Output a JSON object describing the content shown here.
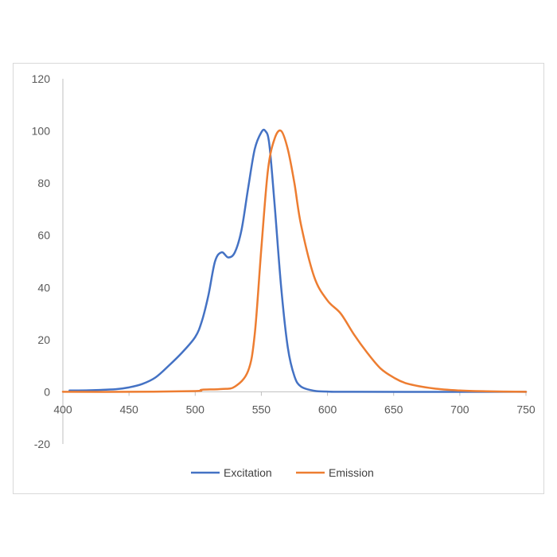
{
  "chart_data": {
    "type": "line",
    "title": "",
    "xlabel": "",
    "ylabel": "",
    "xlim": [
      400,
      750
    ],
    "ylim": [
      -20,
      120
    ],
    "x_ticks": [
      400,
      450,
      500,
      550,
      600,
      650,
      700,
      750
    ],
    "y_ticks": [
      -20,
      0,
      20,
      40,
      60,
      80,
      100,
      120
    ],
    "x_tick_labels": [
      "400",
      "450",
      "500",
      "550",
      "600",
      "650",
      "700",
      "750"
    ],
    "y_tick_labels": [
      "-20",
      "0",
      "20",
      "40",
      "60",
      "80",
      "100",
      "120"
    ],
    "grid": false,
    "legend_position": "bottom",
    "series": [
      {
        "name": "Excitation",
        "color": "#4472C4",
        "x": [
          405,
          420,
          440,
          450,
          460,
          470,
          480,
          490,
          500,
          505,
          510,
          515,
          520,
          525,
          530,
          535,
          540,
          545,
          550,
          553,
          556,
          560,
          565,
          570,
          575,
          580,
          590,
          600,
          620,
          750
        ],
        "y": [
          0.5,
          0.6,
          1,
          1.7,
          3,
          5.5,
          10,
          15,
          21,
          27,
          37,
          50,
          53.5,
          51.5,
          53.5,
          62,
          78,
          93,
          99.5,
          100,
          95,
          72,
          40,
          17,
          6,
          2,
          0.4,
          0.1,
          0,
          0
        ]
      },
      {
        "name": "Emission",
        "color": "#ED7D31",
        "x": [
          400,
          450,
          500,
          505,
          520,
          530,
          540,
          545,
          550,
          555,
          560,
          565,
          570,
          575,
          580,
          590,
          600,
          610,
          620,
          630,
          640,
          650,
          660,
          680,
          700,
          720,
          750
        ],
        "y": [
          0,
          0,
          0.3,
          0.8,
          1.1,
          2,
          8,
          22,
          55,
          85,
          97,
          100,
          93,
          80,
          64,
          44,
          35,
          30,
          22,
          15,
          9,
          5.5,
          3.2,
          1.3,
          0.5,
          0.2,
          0
        ]
      }
    ]
  }
}
